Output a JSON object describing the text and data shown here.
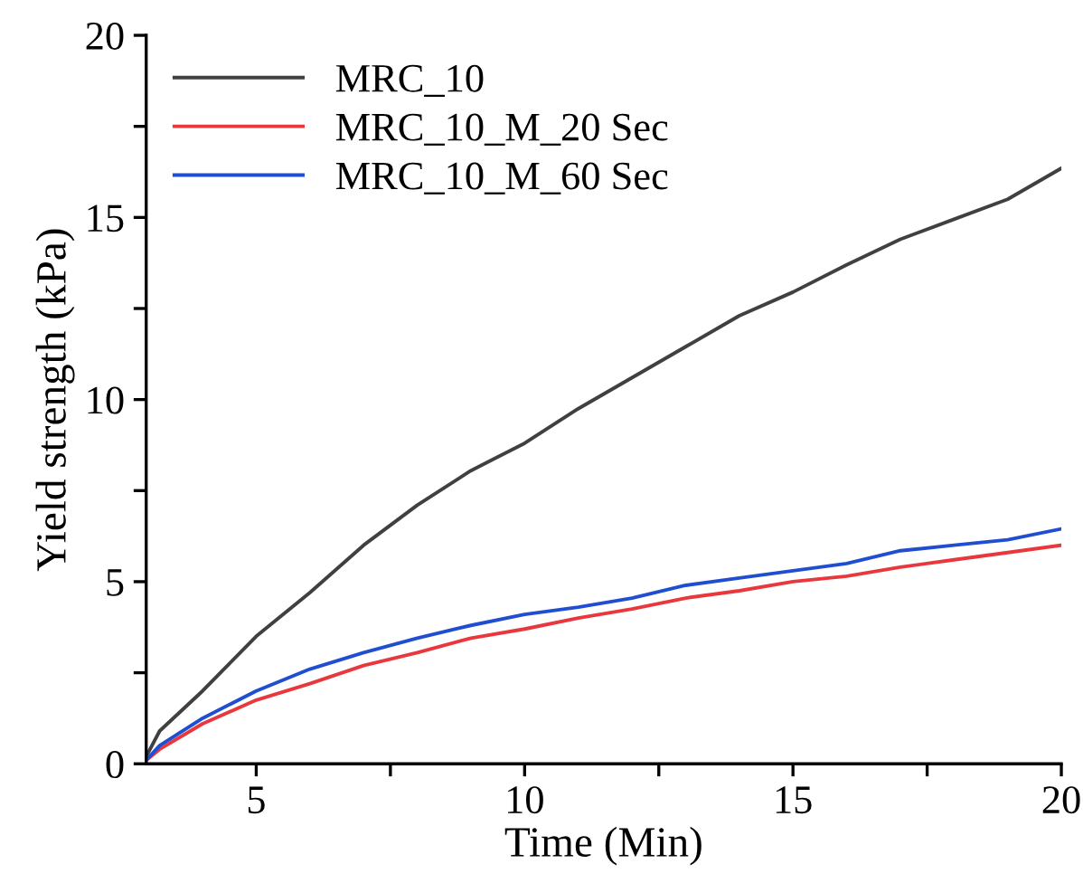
{
  "chart_data": {
    "type": "line",
    "xlabel": "Time (Min)",
    "ylabel": "Yield strength (kPa)",
    "xlim": [
      2.95,
      20
    ],
    "ylim": [
      0,
      20
    ],
    "xticks": [
      5,
      {
        "value": 7.5,
        "label": null
      },
      10,
      {
        "value": 12.5,
        "label": null
      },
      15,
      {
        "value": 17.5,
        "label": null
      },
      20
    ],
    "yticks": [
      0,
      {
        "value": 2.5,
        "label": null
      },
      5,
      {
        "value": 7.5,
        "label": null
      },
      10,
      {
        "value": 12.5,
        "label": null
      },
      15,
      {
        "value": 17.5,
        "label": null
      },
      20
    ],
    "legend": "top left",
    "grid": false,
    "line_style": "solid",
    "x": [
      2.95,
      3.2,
      4,
      5,
      6,
      7,
      8,
      9,
      10,
      11,
      12,
      13,
      14,
      15,
      16,
      17,
      18,
      19,
      20
    ],
    "series": [
      {
        "name": "MRC_10",
        "color": "#404040",
        "values": [
          0.2,
          0.9,
          2.0,
          3.5,
          4.7,
          6.0,
          7.1,
          8.05,
          8.8,
          9.75,
          10.6,
          11.45,
          12.3,
          12.95,
          13.7,
          14.4,
          14.95,
          15.5,
          16.35
        ]
      },
      {
        "name": "MRC_10_M_20 Sec",
        "color": "#e8383d",
        "values": [
          0.1,
          0.4,
          1.1,
          1.75,
          2.2,
          2.7,
          3.05,
          3.45,
          3.7,
          4.0,
          4.25,
          4.55,
          4.75,
          5.0,
          5.15,
          5.4,
          5.6,
          5.8,
          6.0
        ]
      },
      {
        "name": "MRC_10_M_60 Sec",
        "color": "#1f4fd0",
        "values": [
          0.1,
          0.5,
          1.25,
          2.0,
          2.6,
          3.05,
          3.45,
          3.8,
          4.1,
          4.3,
          4.55,
          4.9,
          5.1,
          5.3,
          5.5,
          5.85,
          6.0,
          6.15,
          6.45
        ]
      }
    ]
  }
}
